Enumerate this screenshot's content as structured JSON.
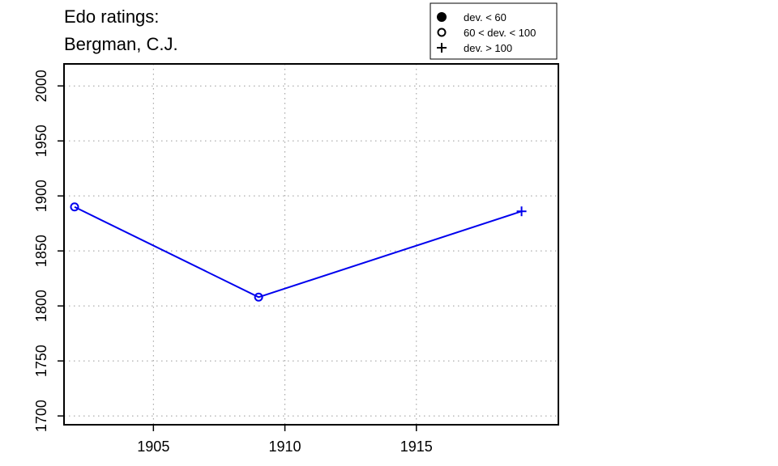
{
  "chart_data": {
    "type": "line",
    "title": [
      "Edo ratings:",
      "Bergman, C.J."
    ],
    "xlabel": "",
    "ylabel": "",
    "xlim": [
      1901.6,
      1920.4
    ],
    "ylim": [
      1692,
      2020
    ],
    "x_ticks": [
      1905,
      1910,
      1915
    ],
    "y_ticks": [
      1700,
      1750,
      1800,
      1850,
      1900,
      1950,
      2000
    ],
    "grid": true,
    "series": [
      {
        "color": "#0000ee",
        "points": [
          {
            "x": 1902,
            "y": 1890,
            "marker": "open-circle"
          },
          {
            "x": 1909,
            "y": 1808,
            "marker": "open-circle"
          },
          {
            "x": 1919,
            "y": 1886,
            "marker": "plus"
          }
        ]
      }
    ],
    "legend": {
      "position": "top-right",
      "entries": [
        {
          "marker": "filled-circle",
          "label": "dev. < 60"
        },
        {
          "marker": "open-circle",
          "label": "60 < dev. < 100"
        },
        {
          "marker": "plus",
          "label": "dev. > 100"
        }
      ]
    }
  }
}
